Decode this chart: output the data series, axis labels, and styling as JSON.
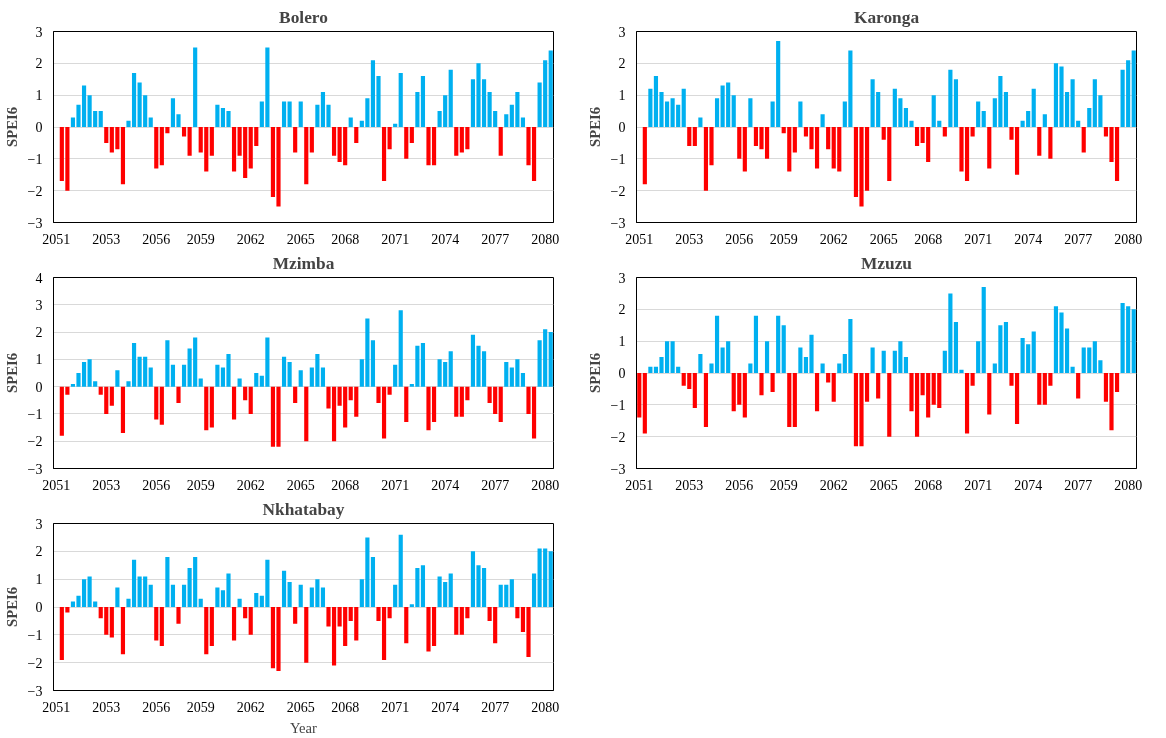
{
  "chart_data": [
    {
      "type": "bar",
      "title": "Bolero",
      "ylabel": "SPEI6",
      "ylim": [
        -3,
        3
      ],
      "yticks": [
        -3,
        -2,
        -1,
        0,
        1,
        2,
        3
      ],
      "grid": "y",
      "categories": [
        "2051",
        null,
        null,
        null,
        null,
        null,
        null,
        null,
        null,
        "2053",
        null,
        null,
        null,
        null,
        null,
        null,
        null,
        null,
        "2056",
        null,
        null,
        null,
        null,
        null,
        null,
        null,
        "2059",
        null,
        null,
        null,
        null,
        null,
        null,
        null,
        null,
        "2062",
        null,
        null,
        null,
        null,
        null,
        null,
        null,
        null,
        "2065",
        null,
        null,
        null,
        null,
        null,
        null,
        null,
        "2068",
        null,
        null,
        null,
        null,
        null,
        null,
        null,
        null,
        "2071",
        null,
        null,
        null,
        null,
        null,
        null,
        null,
        null,
        "2074",
        null,
        null,
        null,
        null,
        null,
        null,
        null,
        null,
        "2077",
        null,
        null,
        null,
        null,
        null,
        null,
        null,
        null,
        "2080",
        null
      ],
      "series": [
        {
          "values": [
            null,
            -1.7,
            -2.0,
            0.3,
            0.7,
            1.3,
            1.0,
            0.5,
            0.5,
            -0.5,
            -0.8,
            -0.7,
            -1.8,
            0.2,
            1.7,
            1.4,
            1.0,
            0.3,
            -1.3,
            -1.2,
            -0.2,
            0.9,
            0.4,
            -0.3,
            -0.9,
            2.5,
            -0.8,
            -1.4,
            -0.9,
            0.7,
            0.6,
            0.5,
            -1.4,
            -0.9,
            -1.6,
            -1.3,
            -0.6,
            0.8,
            2.5,
            -2.2,
            -2.5,
            0.8,
            0.8,
            -0.8,
            0.8,
            -1.8,
            -0.8,
            0.7,
            1.1,
            0.7,
            -0.9,
            -1.1,
            -1.2,
            0.3,
            -0.5,
            0.2,
            0.9,
            2.1,
            1.6,
            -1.7,
            -0.7,
            0.1,
            1.7,
            -1.0,
            -0.5,
            1.1,
            1.6,
            -1.2,
            -1.2,
            0.5,
            1.0,
            1.8,
            -0.9,
            -0.8,
            -0.7,
            1.5,
            2.0,
            1.5,
            1.1,
            0.5,
            -0.9,
            0.4,
            0.7,
            1.1,
            0.3,
            -1.2,
            -1.7,
            1.4,
            2.1,
            2.4
          ],
          "colors": [
            "#ff0000",
            "#ff0000",
            "#ff0000",
            "#00b0f0",
            "#00b0f0",
            "#00b0f0",
            "#00b0f0",
            "#00b0f0",
            "#00b0f0",
            "#ff0000",
            "#ff0000",
            "#ff0000",
            "#ff0000",
            "#00b0f0",
            "#00b0f0",
            "#00b0f0",
            "#00b0f0",
            "#00b0f0",
            "#ff0000",
            "#ff0000",
            "#ff0000",
            "#00b0f0",
            "#00b0f0",
            "#ff0000",
            "#ff0000",
            "#00b0f0",
            "#ff0000",
            "#ff0000",
            "#ff0000",
            "#00b0f0",
            "#00b0f0",
            "#00b0f0",
            "#ff0000",
            "#ff0000",
            "#ff0000",
            "#ff0000",
            "#ff0000",
            "#00b0f0",
            "#00b0f0",
            "#ff0000",
            "#ff0000",
            "#00b0f0",
            "#00b0f0",
            "#ff0000",
            "#00b0f0",
            "#ff0000",
            "#ff0000",
            "#00b0f0",
            "#00b0f0",
            "#00b0f0",
            "#ff0000",
            "#ff0000",
            "#ff0000",
            "#00b0f0",
            "#ff0000",
            "#00b0f0",
            "#00b0f0",
            "#00b0f0",
            "#00b0f0",
            "#ff0000",
            "#ff0000",
            "#00b0f0",
            "#00b0f0",
            "#ff0000",
            "#ff0000",
            "#00b0f0",
            "#00b0f0",
            "#ff0000",
            "#ff0000",
            "#00b0f0",
            "#00b0f0",
            "#00b0f0",
            "#ff0000",
            "#ff0000",
            "#ff0000",
            "#00b0f0",
            "#00b0f0",
            "#00b0f0",
            "#00b0f0",
            "#00b0f0",
            "#ff0000",
            "#00b0f0",
            "#00b0f0",
            "#00b0f0",
            "#00b0f0",
            "#ff0000",
            "#ff0000",
            "#00b0f0",
            "#00b0f0",
            "#00b0f0"
          ]
        }
      ]
    },
    {
      "type": "bar",
      "title": "Karonga",
      "ylabel": "SPEI6",
      "ylim": [
        -3,
        3
      ],
      "yticks": [
        -3,
        -2,
        -1,
        0,
        1,
        2,
        3
      ],
      "grid": "y",
      "categories": [
        "2051",
        null,
        null,
        null,
        null,
        null,
        null,
        null,
        null,
        "2053",
        null,
        null,
        null,
        null,
        null,
        null,
        null,
        null,
        "2056",
        null,
        null,
        null,
        null,
        null,
        null,
        null,
        "2059",
        null,
        null,
        null,
        null,
        null,
        null,
        null,
        null,
        "2062",
        null,
        null,
        null,
        null,
        null,
        null,
        null,
        null,
        "2065",
        null,
        null,
        null,
        null,
        null,
        null,
        null,
        "2068",
        null,
        null,
        null,
        null,
        null,
        null,
        null,
        null,
        "2071",
        null,
        null,
        null,
        null,
        null,
        null,
        null,
        null,
        "2074",
        null,
        null,
        null,
        null,
        null,
        null,
        null,
        null,
        "2077",
        null,
        null,
        null,
        null,
        null,
        null,
        null,
        null,
        "2080",
        null
      ],
      "series": [
        {
          "values": [
            null,
            -1.8,
            1.2,
            1.6,
            1.1,
            0.8,
            0.9,
            0.7,
            1.2,
            -0.6,
            -0.6,
            0.3,
            -2.0,
            -1.2,
            0.9,
            1.3,
            1.4,
            1.0,
            -1.0,
            -1.4,
            0.9,
            -0.6,
            -0.7,
            -1.0,
            0.8,
            2.7,
            -0.2,
            -1.4,
            -0.8,
            0.8,
            -0.3,
            -0.7,
            -1.3,
            0.4,
            -0.7,
            -1.3,
            -1.4,
            0.8,
            2.4,
            -2.2,
            -2.5,
            -2.0,
            1.5,
            1.1,
            -0.4,
            -1.7,
            1.2,
            0.9,
            0.6,
            0.2,
            -0.6,
            -0.5,
            -1.1,
            1.0,
            0.2,
            -0.3,
            1.8,
            1.5,
            -1.4,
            -1.7,
            -0.3,
            0.8,
            0.5,
            -1.3,
            0.9,
            1.6,
            1.1,
            -0.4,
            -1.5,
            0.2,
            0.5,
            1.2,
            -0.9,
            0.4,
            -1.0,
            2.0,
            1.9,
            1.1,
            1.5,
            0.2,
            -0.8,
            0.6,
            1.5,
            1.0,
            -0.3,
            -1.1,
            -1.7,
            1.8,
            2.1,
            2.4
          ],
          "colors": [
            "#ff0000",
            "#ff0000",
            "#00b0f0",
            "#00b0f0",
            "#00b0f0",
            "#00b0f0",
            "#00b0f0",
            "#00b0f0",
            "#00b0f0",
            "#ff0000",
            "#ff0000",
            "#00b0f0",
            "#ff0000",
            "#ff0000",
            "#00b0f0",
            "#00b0f0",
            "#00b0f0",
            "#00b0f0",
            "#ff0000",
            "#ff0000",
            "#00b0f0",
            "#ff0000",
            "#ff0000",
            "#ff0000",
            "#00b0f0",
            "#00b0f0",
            "#ff0000",
            "#ff0000",
            "#ff0000",
            "#00b0f0",
            "#ff0000",
            "#ff0000",
            "#ff0000",
            "#00b0f0",
            "#ff0000",
            "#ff0000",
            "#ff0000",
            "#00b0f0",
            "#00b0f0",
            "#ff0000",
            "#ff0000",
            "#ff0000",
            "#00b0f0",
            "#00b0f0",
            "#ff0000",
            "#ff0000",
            "#00b0f0",
            "#00b0f0",
            "#00b0f0",
            "#00b0f0",
            "#ff0000",
            "#ff0000",
            "#ff0000",
            "#00b0f0",
            "#00b0f0",
            "#ff0000",
            "#00b0f0",
            "#00b0f0",
            "#ff0000",
            "#ff0000",
            "#ff0000",
            "#00b0f0",
            "#00b0f0",
            "#ff0000",
            "#00b0f0",
            "#00b0f0",
            "#00b0f0",
            "#ff0000",
            "#ff0000",
            "#00b0f0",
            "#00b0f0",
            "#00b0f0",
            "#ff0000",
            "#00b0f0",
            "#ff0000",
            "#00b0f0",
            "#00b0f0",
            "#00b0f0",
            "#00b0f0",
            "#00b0f0",
            "#ff0000",
            "#00b0f0",
            "#00b0f0",
            "#00b0f0",
            "#ff0000",
            "#ff0000",
            "#ff0000",
            "#00b0f0",
            "#00b0f0",
            "#00b0f0"
          ]
        }
      ]
    },
    {
      "type": "bar",
      "title": "Mzimba",
      "ylabel": "SPEI6",
      "ylim": [
        -3,
        4
      ],
      "yticks": [
        -3,
        -2,
        -1,
        0,
        1,
        2,
        3,
        4
      ],
      "grid": "y",
      "categories": [
        "2051",
        null,
        null,
        null,
        null,
        null,
        null,
        null,
        null,
        "2053",
        null,
        null,
        null,
        null,
        null,
        null,
        null,
        null,
        "2056",
        null,
        null,
        null,
        null,
        null,
        null,
        null,
        "2059",
        null,
        null,
        null,
        null,
        null,
        null,
        null,
        null,
        "2062",
        null,
        null,
        null,
        null,
        null,
        null,
        null,
        null,
        "2065",
        null,
        null,
        null,
        null,
        null,
        null,
        null,
        "2068",
        null,
        null,
        null,
        null,
        null,
        null,
        null,
        null,
        "2071",
        null,
        null,
        null,
        null,
        null,
        null,
        null,
        null,
        "2074",
        null,
        null,
        null,
        null,
        null,
        null,
        null,
        null,
        "2077",
        null,
        null,
        null,
        null,
        null,
        null,
        null,
        null,
        "2080",
        null
      ],
      "series": [
        {
          "values": [
            null,
            -1.8,
            -0.3,
            0.1,
            0.5,
            0.9,
            1.0,
            0.2,
            -0.3,
            -1.0,
            -0.7,
            0.6,
            -1.7,
            0.2,
            1.6,
            1.1,
            1.1,
            0.7,
            -1.2,
            -1.4,
            1.7,
            0.8,
            -0.6,
            0.8,
            1.4,
            1.8,
            0.3,
            -1.6,
            -1.5,
            0.8,
            0.7,
            1.2,
            -1.2,
            0.3,
            -0.5,
            -1.0,
            0.5,
            0.4,
            1.8,
            -2.2,
            -2.2,
            1.1,
            0.9,
            -0.6,
            0.6,
            -2.0,
            0.7,
            1.2,
            0.7,
            -0.8,
            -2.0,
            -0.7,
            -1.5,
            -0.5,
            -1.1,
            1.0,
            2.5,
            1.7,
            -0.6,
            -1.9,
            -0.3,
            0.8,
            2.8,
            -1.3,
            0.1,
            1.5,
            1.6,
            -1.6,
            -1.3,
            1.0,
            0.9,
            1.3,
            -1.1,
            -1.1,
            -0.5,
            1.9,
            1.5,
            1.3,
            -0.6,
            -1.0,
            -1.3,
            0.9,
            0.7,
            1.0,
            0.5,
            -1.0,
            -1.9,
            1.7,
            2.1,
            2.0
          ],
          "colors": [
            "#ff0000",
            "#ff0000",
            "#ff0000",
            "#00b0f0",
            "#00b0f0",
            "#00b0f0",
            "#00b0f0",
            "#00b0f0",
            "#ff0000",
            "#ff0000",
            "#ff0000",
            "#00b0f0",
            "#ff0000",
            "#00b0f0",
            "#00b0f0",
            "#00b0f0",
            "#00b0f0",
            "#00b0f0",
            "#ff0000",
            "#ff0000",
            "#00b0f0",
            "#00b0f0",
            "#ff0000",
            "#00b0f0",
            "#00b0f0",
            "#00b0f0",
            "#00b0f0",
            "#ff0000",
            "#ff0000",
            "#00b0f0",
            "#00b0f0",
            "#00b0f0",
            "#ff0000",
            "#00b0f0",
            "#ff0000",
            "#ff0000",
            "#00b0f0",
            "#00b0f0",
            "#00b0f0",
            "#ff0000",
            "#ff0000",
            "#00b0f0",
            "#00b0f0",
            "#ff0000",
            "#00b0f0",
            "#ff0000",
            "#00b0f0",
            "#00b0f0",
            "#00b0f0",
            "#ff0000",
            "#ff0000",
            "#ff0000",
            "#ff0000",
            "#ff0000",
            "#ff0000",
            "#00b0f0",
            "#00b0f0",
            "#00b0f0",
            "#ff0000",
            "#ff0000",
            "#ff0000",
            "#00b0f0",
            "#00b0f0",
            "#ff0000",
            "#00b0f0",
            "#00b0f0",
            "#00b0f0",
            "#ff0000",
            "#ff0000",
            "#00b0f0",
            "#00b0f0",
            "#00b0f0",
            "#ff0000",
            "#ff0000",
            "#ff0000",
            "#00b0f0",
            "#00b0f0",
            "#00b0f0",
            "#ff0000",
            "#ff0000",
            "#ff0000",
            "#00b0f0",
            "#00b0f0",
            "#00b0f0",
            "#00b0f0",
            "#ff0000",
            "#ff0000",
            "#00b0f0",
            "#00b0f0",
            "#00b0f0"
          ]
        }
      ]
    },
    {
      "type": "bar",
      "title": "Mzuzu",
      "ylabel": "SPEI6",
      "ylim": [
        -3,
        3
      ],
      "yticks": [
        -3,
        -2,
        -1,
        0,
        1,
        2,
        3
      ],
      "grid": "y",
      "categories": [
        "2051",
        null,
        null,
        null,
        null,
        null,
        null,
        null,
        null,
        "2053",
        null,
        null,
        null,
        null,
        null,
        null,
        null,
        null,
        "2056",
        null,
        null,
        null,
        null,
        null,
        null,
        null,
        "2059",
        null,
        null,
        null,
        null,
        null,
        null,
        null,
        null,
        "2062",
        null,
        null,
        null,
        null,
        null,
        null,
        null,
        null,
        "2065",
        null,
        null,
        null,
        null,
        null,
        null,
        null,
        "2068",
        null,
        null,
        null,
        null,
        null,
        null,
        null,
        null,
        "2071",
        null,
        null,
        null,
        null,
        null,
        null,
        null,
        null,
        "2074",
        null,
        null,
        null,
        null,
        null,
        null,
        null,
        null,
        "2077",
        null,
        null,
        null,
        null,
        null,
        null,
        null,
        null,
        "2080",
        null
      ],
      "series": [
        {
          "values": [
            -1.4,
            -1.9,
            0.2,
            0.2,
            0.5,
            1.0,
            1.0,
            0.2,
            -0.4,
            -0.5,
            -1.1,
            0.6,
            -1.7,
            0.3,
            1.8,
            0.8,
            1.0,
            -1.2,
            -1.0,
            -1.4,
            0.3,
            1.8,
            -0.7,
            1.0,
            -0.6,
            1.8,
            1.5,
            -1.7,
            -1.7,
            0.8,
            0.5,
            1.2,
            -1.2,
            0.3,
            -0.3,
            -0.9,
            0.3,
            0.6,
            1.7,
            -2.3,
            -2.3,
            -0.9,
            0.8,
            -0.8,
            0.7,
            -2.0,
            0.7,
            1.0,
            0.5,
            -1.2,
            -2.0,
            -0.7,
            -1.4,
            -1.0,
            -1.1,
            0.7,
            2.5,
            1.6,
            0.1,
            -1.9,
            -0.4,
            1.0,
            2.7,
            -1.3,
            0.3,
            1.5,
            1.6,
            -0.4,
            -1.6,
            1.1,
            0.9,
            1.3,
            -1.0,
            -1.0,
            -0.4,
            2.1,
            1.9,
            1.4,
            0.2,
            -0.8,
            0.8,
            0.8,
            1.0,
            0.4,
            -0.9,
            -1.8,
            -0.6,
            2.2,
            2.1,
            2.0
          ],
          "colors": [
            "#ff0000",
            "#ff0000",
            "#00b0f0",
            "#00b0f0",
            "#00b0f0",
            "#00b0f0",
            "#00b0f0",
            "#00b0f0",
            "#ff0000",
            "#ff0000",
            "#ff0000",
            "#00b0f0",
            "#ff0000",
            "#00b0f0",
            "#00b0f0",
            "#00b0f0",
            "#00b0f0",
            "#ff0000",
            "#ff0000",
            "#ff0000",
            "#00b0f0",
            "#00b0f0",
            "#ff0000",
            "#00b0f0",
            "#ff0000",
            "#00b0f0",
            "#00b0f0",
            "#ff0000",
            "#ff0000",
            "#00b0f0",
            "#00b0f0",
            "#00b0f0",
            "#ff0000",
            "#00b0f0",
            "#ff0000",
            "#ff0000",
            "#00b0f0",
            "#00b0f0",
            "#00b0f0",
            "#ff0000",
            "#ff0000",
            "#ff0000",
            "#00b0f0",
            "#ff0000",
            "#00b0f0",
            "#ff0000",
            "#00b0f0",
            "#00b0f0",
            "#00b0f0",
            "#ff0000",
            "#ff0000",
            "#ff0000",
            "#ff0000",
            "#ff0000",
            "#ff0000",
            "#00b0f0",
            "#00b0f0",
            "#00b0f0",
            "#00b0f0",
            "#ff0000",
            "#ff0000",
            "#00b0f0",
            "#00b0f0",
            "#ff0000",
            "#00b0f0",
            "#00b0f0",
            "#00b0f0",
            "#ff0000",
            "#ff0000",
            "#00b0f0",
            "#00b0f0",
            "#00b0f0",
            "#ff0000",
            "#ff0000",
            "#ff0000",
            "#00b0f0",
            "#00b0f0",
            "#00b0f0",
            "#00b0f0",
            "#ff0000",
            "#00b0f0",
            "#00b0f0",
            "#00b0f0",
            "#00b0f0",
            "#ff0000",
            "#ff0000",
            "#ff0000",
            "#00b0f0",
            "#00b0f0",
            "#00b0f0"
          ]
        }
      ]
    },
    {
      "type": "bar",
      "title": "Nkhatabay",
      "ylabel": "SPEI6",
      "xlabel": "Year",
      "ylim": [
        -3,
        3
      ],
      "yticks": [
        -3,
        -2,
        -1,
        0,
        1,
        2,
        3
      ],
      "grid": "y",
      "categories": [
        "2051",
        null,
        null,
        null,
        null,
        null,
        null,
        null,
        null,
        "2053",
        null,
        null,
        null,
        null,
        null,
        null,
        null,
        null,
        "2056",
        null,
        null,
        null,
        null,
        null,
        null,
        null,
        "2059",
        null,
        null,
        null,
        null,
        null,
        null,
        null,
        null,
        "2062",
        null,
        null,
        null,
        null,
        null,
        null,
        null,
        null,
        "2065",
        null,
        null,
        null,
        null,
        null,
        null,
        null,
        "2068",
        null,
        null,
        null,
        null,
        null,
        null,
        null,
        null,
        "2071",
        null,
        null,
        null,
        null,
        null,
        null,
        null,
        null,
        "2074",
        null,
        null,
        null,
        null,
        null,
        null,
        null,
        null,
        "2077",
        null,
        null,
        null,
        null,
        null,
        null,
        null,
        null,
        "2080",
        null
      ],
      "series": [
        {
          "values": [
            null,
            -1.9,
            -0.2,
            0.2,
            0.4,
            1.0,
            1.1,
            0.2,
            -0.4,
            -1.0,
            -1.1,
            0.7,
            -1.7,
            0.3,
            1.7,
            1.1,
            1.1,
            0.8,
            -1.2,
            -1.4,
            1.8,
            0.8,
            -0.6,
            0.8,
            1.4,
            1.8,
            0.3,
            -1.7,
            -1.4,
            0.7,
            0.6,
            1.2,
            -1.2,
            0.3,
            -0.4,
            -1.0,
            0.5,
            0.4,
            1.7,
            -2.2,
            -2.3,
            1.3,
            0.9,
            -0.6,
            0.8,
            -2.0,
            0.7,
            1.0,
            0.7,
            -0.7,
            -2.1,
            -0.7,
            -1.4,
            -0.5,
            -1.2,
            1.0,
            2.5,
            1.8,
            -0.5,
            -1.9,
            -0.4,
            0.8,
            2.6,
            -1.3,
            0.1,
            1.4,
            1.5,
            -1.6,
            -1.4,
            1.1,
            0.9,
            1.2,
            -1.0,
            -1.0,
            -0.4,
            2.0,
            1.5,
            1.4,
            -0.5,
            -1.3,
            0.8,
            0.8,
            1.0,
            -0.4,
            -0.9,
            -1.8,
            1.2,
            2.1,
            2.1,
            2.0
          ],
          "colors": [
            "#ff0000",
            "#ff0000",
            "#ff0000",
            "#00b0f0",
            "#00b0f0",
            "#00b0f0",
            "#00b0f0",
            "#00b0f0",
            "#ff0000",
            "#ff0000",
            "#ff0000",
            "#00b0f0",
            "#ff0000",
            "#00b0f0",
            "#00b0f0",
            "#00b0f0",
            "#00b0f0",
            "#00b0f0",
            "#ff0000",
            "#ff0000",
            "#00b0f0",
            "#00b0f0",
            "#ff0000",
            "#00b0f0",
            "#00b0f0",
            "#00b0f0",
            "#00b0f0",
            "#ff0000",
            "#ff0000",
            "#00b0f0",
            "#00b0f0",
            "#00b0f0",
            "#ff0000",
            "#00b0f0",
            "#ff0000",
            "#ff0000",
            "#00b0f0",
            "#00b0f0",
            "#00b0f0",
            "#ff0000",
            "#ff0000",
            "#00b0f0",
            "#00b0f0",
            "#ff0000",
            "#00b0f0",
            "#ff0000",
            "#00b0f0",
            "#00b0f0",
            "#00b0f0",
            "#ff0000",
            "#ff0000",
            "#ff0000",
            "#ff0000",
            "#ff0000",
            "#ff0000",
            "#00b0f0",
            "#00b0f0",
            "#00b0f0",
            "#ff0000",
            "#ff0000",
            "#ff0000",
            "#00b0f0",
            "#00b0f0",
            "#ff0000",
            "#00b0f0",
            "#00b0f0",
            "#00b0f0",
            "#ff0000",
            "#ff0000",
            "#00b0f0",
            "#00b0f0",
            "#00b0f0",
            "#ff0000",
            "#ff0000",
            "#ff0000",
            "#00b0f0",
            "#00b0f0",
            "#00b0f0",
            "#ff0000",
            "#ff0000",
            "#00b0f0",
            "#00b0f0",
            "#00b0f0",
            "#ff0000",
            "#ff0000",
            "#ff0000",
            "#00b0f0",
            "#00b0f0",
            "#00b0f0",
            "#00b0f0"
          ]
        }
      ]
    }
  ]
}
